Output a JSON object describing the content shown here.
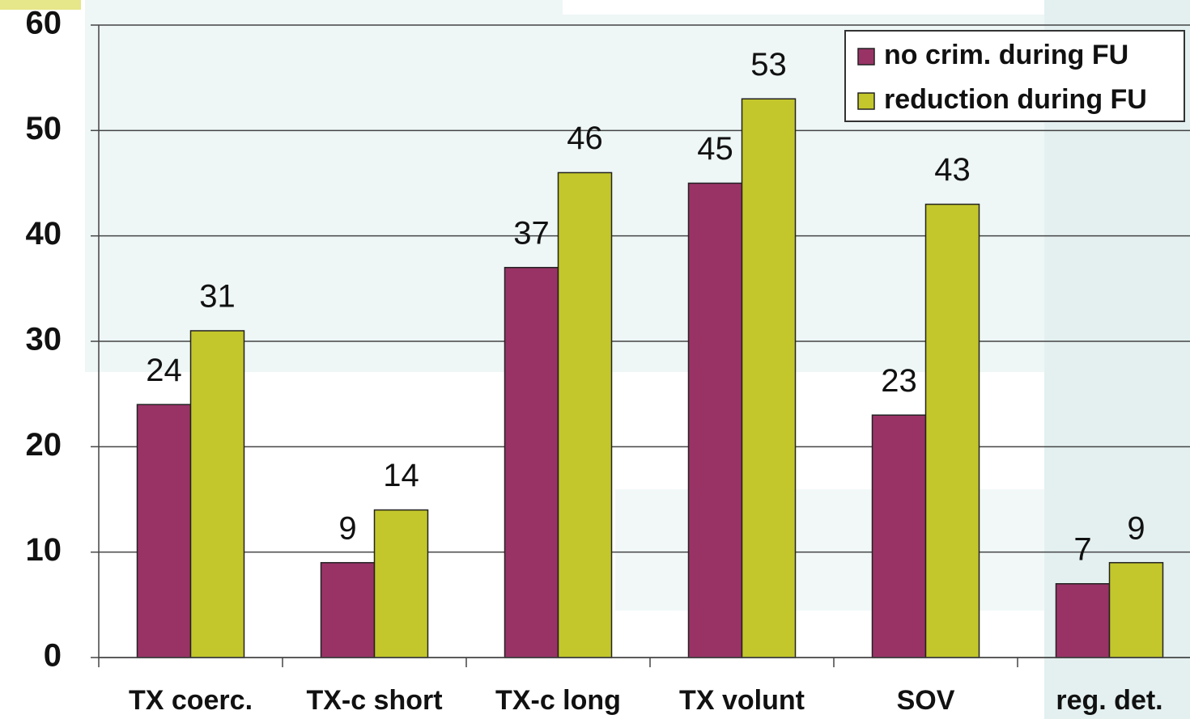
{
  "chart_data": {
    "type": "bar",
    "categories": [
      "TX coerc.",
      "TX-c short",
      "TX-c long",
      "TX volunt",
      "SOV",
      "reg. det."
    ],
    "series": [
      {
        "name": "no crim. during FU",
        "color": "#993366",
        "values": [
          24,
          9,
          37,
          45,
          23,
          7
        ]
      },
      {
        "name": "reduction during FU",
        "color": "#c3c72b",
        "values": [
          31,
          14,
          46,
          53,
          43,
          9
        ]
      }
    ],
    "ylim": [
      0,
      60
    ],
    "yticks": [
      0,
      10,
      20,
      30,
      40,
      50,
      60
    ],
    "grid": true,
    "legend": "top-right"
  }
}
